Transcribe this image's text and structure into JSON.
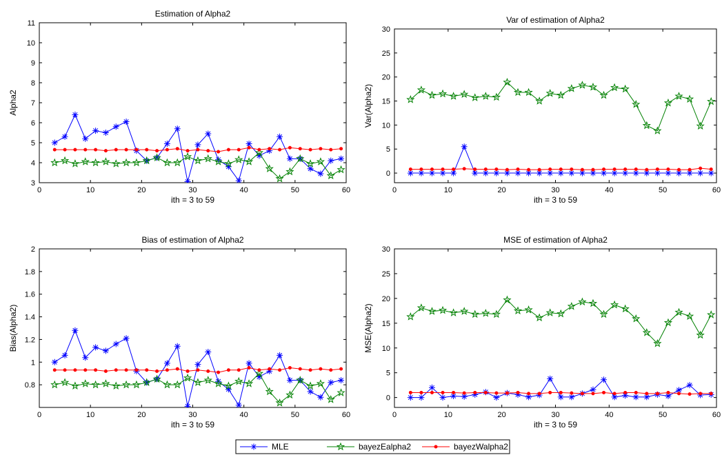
{
  "legend": {
    "entries": [
      {
        "label": "MLE",
        "color": "#0000ff",
        "marker": "asterisk"
      },
      {
        "label": "bayezEalpha2",
        "color": "#008000",
        "marker": "pentagram"
      },
      {
        "label": "bayezWalpha2",
        "color": "#ff0000",
        "marker": "dot"
      }
    ]
  },
  "chart_data": [
    {
      "type": "line",
      "title": "Estimation of Alpha2",
      "xlabel": "ith = 3 to 59",
      "ylabel": "Alpha2",
      "xlim": [
        0,
        60
      ],
      "ylim": [
        3,
        11
      ],
      "xticks": [
        "0",
        "10",
        "20",
        "30",
        "40",
        "50",
        "60"
      ],
      "yticks": [
        "3",
        "4",
        "5",
        "6",
        "7",
        "8",
        "9",
        "10",
        "11"
      ],
      "x": [
        3,
        5,
        7,
        9,
        11,
        13,
        15,
        17,
        19,
        21,
        23,
        25,
        27,
        29,
        31,
        33,
        35,
        37,
        39,
        41,
        43,
        45,
        47,
        49,
        51,
        53,
        55,
        57,
        59
      ],
      "series": [
        {
          "name": "MLE",
          "values": [
            5.0,
            5.3,
            6.4,
            5.2,
            5.6,
            5.5,
            5.8,
            6.05,
            4.6,
            4.1,
            4.25,
            4.95,
            5.7,
            3.05,
            4.9,
            5.45,
            4.15,
            3.8,
            3.1,
            4.95,
            4.35,
            4.6,
            5.3,
            4.2,
            4.2,
            3.7,
            3.45,
            4.1,
            4.2
          ]
        },
        {
          "name": "bayezEalpha2",
          "values": [
            4.0,
            4.1,
            3.95,
            4.05,
            4.0,
            4.05,
            3.95,
            4.0,
            4.0,
            4.1,
            4.25,
            4.0,
            4.0,
            4.3,
            4.1,
            4.2,
            4.05,
            3.95,
            4.15,
            4.05,
            4.5,
            3.7,
            3.2,
            3.55,
            4.2,
            3.95,
            4.05,
            3.35,
            3.65
          ]
        },
        {
          "name": "bayezWalpha2",
          "values": [
            4.65,
            4.65,
            4.65,
            4.65,
            4.65,
            4.6,
            4.65,
            4.65,
            4.65,
            4.65,
            4.6,
            4.65,
            4.7,
            4.6,
            4.65,
            4.6,
            4.55,
            4.65,
            4.65,
            4.75,
            4.65,
            4.7,
            4.65,
            4.75,
            4.7,
            4.65,
            4.7,
            4.65,
            4.7
          ]
        }
      ]
    },
    {
      "type": "line",
      "title": "Var of estimation of Alpha2",
      "xlabel": "ith = 3 to 59",
      "ylabel": "Var(Alpha2)",
      "xlim": [
        0,
        60
      ],
      "ylim": [
        -2,
        30
      ],
      "xticks": [
        "0",
        "10",
        "20",
        "30",
        "40",
        "50",
        "60"
      ],
      "yticks": [
        "0",
        "5",
        "10",
        "15",
        "20",
        "25",
        "30"
      ],
      "x": [
        3,
        5,
        7,
        9,
        11,
        13,
        15,
        17,
        19,
        21,
        23,
        25,
        27,
        29,
        31,
        33,
        35,
        37,
        39,
        41,
        43,
        45,
        47,
        49,
        51,
        53,
        55,
        57,
        59
      ],
      "series": [
        {
          "name": "MLE",
          "values": [
            0,
            0,
            0,
            0,
            0,
            5.5,
            0,
            0,
            0,
            0,
            0,
            0,
            0,
            0,
            0,
            0,
            0,
            0,
            0,
            0,
            0,
            0,
            0,
            0,
            0,
            0,
            0,
            0,
            0
          ]
        },
        {
          "name": "bayezEalpha2",
          "values": [
            15.3,
            17.3,
            16.2,
            16.5,
            16.0,
            16.4,
            15.7,
            16.0,
            15.8,
            18.9,
            16.8,
            16.8,
            15.0,
            16.6,
            16.2,
            17.6,
            18.3,
            17.9,
            16.2,
            17.8,
            17.5,
            14.3,
            9.9,
            8.8,
            14.6,
            16.0,
            15.4,
            9.8,
            14.9
          ]
        },
        {
          "name": "bayezWalpha2",
          "values": [
            0.8,
            0.8,
            0.8,
            0.8,
            0.8,
            0.9,
            0.8,
            0.8,
            0.8,
            0.7,
            0.8,
            0.7,
            0.7,
            0.8,
            0.8,
            0.8,
            0.7,
            0.7,
            0.8,
            0.8,
            0.8,
            0.8,
            0.7,
            0.8,
            0.8,
            0.7,
            0.7,
            1.0,
            0.8
          ]
        }
      ]
    },
    {
      "type": "line",
      "title": "Bias of estimation of Alpha2",
      "xlabel": "ith = 3 to 59",
      "ylabel": "Bias(Alpha2)",
      "xlim": [
        0,
        60
      ],
      "ylim": [
        0.6,
        2
      ],
      "xticks": [
        "0",
        "10",
        "20",
        "30",
        "40",
        "50",
        "60"
      ],
      "yticks": [
        "0.8",
        "1",
        "1.2",
        "1.4",
        "1.6",
        "1.8",
        "2"
      ],
      "x": [
        3,
        5,
        7,
        9,
        11,
        13,
        15,
        17,
        19,
        21,
        23,
        25,
        27,
        29,
        31,
        33,
        35,
        37,
        39,
        41,
        43,
        45,
        47,
        49,
        51,
        53,
        55,
        57,
        59
      ],
      "series": [
        {
          "name": "MLE",
          "values": [
            1.0,
            1.06,
            1.28,
            1.04,
            1.13,
            1.1,
            1.16,
            1.21,
            0.92,
            0.82,
            0.85,
            0.99,
            1.14,
            0.61,
            0.98,
            1.09,
            0.83,
            0.76,
            0.62,
            0.99,
            0.87,
            0.92,
            1.06,
            0.84,
            0.84,
            0.74,
            0.69,
            0.82,
            0.84
          ]
        },
        {
          "name": "bayezEalpha2",
          "values": [
            0.8,
            0.82,
            0.79,
            0.81,
            0.8,
            0.81,
            0.79,
            0.8,
            0.8,
            0.82,
            0.85,
            0.8,
            0.8,
            0.86,
            0.82,
            0.84,
            0.81,
            0.79,
            0.83,
            0.81,
            0.9,
            0.74,
            0.64,
            0.71,
            0.84,
            0.79,
            0.81,
            0.67,
            0.73
          ]
        },
        {
          "name": "bayezWalpha2",
          "values": [
            0.93,
            0.93,
            0.93,
            0.93,
            0.93,
            0.92,
            0.93,
            0.93,
            0.93,
            0.93,
            0.92,
            0.93,
            0.94,
            0.92,
            0.93,
            0.92,
            0.91,
            0.93,
            0.93,
            0.95,
            0.93,
            0.94,
            0.93,
            0.95,
            0.94,
            0.93,
            0.94,
            0.93,
            0.94
          ]
        }
      ]
    },
    {
      "type": "line",
      "title": "MSE of estimation of Alpha2",
      "xlabel": "ith = 3 to 59",
      "ylabel": "MSE(Alpha2)",
      "xlim": [
        0,
        60
      ],
      "ylim": [
        -2,
        30
      ],
      "xticks": [
        "0",
        "10",
        "20",
        "30",
        "40",
        "50",
        "60"
      ],
      "yticks": [
        "0",
        "5",
        "10",
        "15",
        "20",
        "25",
        "30"
      ],
      "x": [
        3,
        5,
        7,
        9,
        11,
        13,
        15,
        17,
        19,
        21,
        23,
        25,
        27,
        29,
        31,
        33,
        35,
        37,
        39,
        41,
        43,
        45,
        47,
        49,
        51,
        53,
        55,
        57,
        59
      ],
      "series": [
        {
          "name": "MLE",
          "values": [
            0,
            0,
            2.0,
            0,
            0.3,
            0.2,
            0.6,
            1.1,
            0,
            0.9,
            0.6,
            0.1,
            0.5,
            3.8,
            0.1,
            0.1,
            0.8,
            1.6,
            3.6,
            0.1,
            0.4,
            0.1,
            0.1,
            0.6,
            0.3,
            1.5,
            2.5,
            0.5,
            0.6
          ]
        },
        {
          "name": "bayezEalpha2",
          "values": [
            16.3,
            18.1,
            17.4,
            17.6,
            17.1,
            17.4,
            16.8,
            17.0,
            16.8,
            19.7,
            17.5,
            17.7,
            16.1,
            17.1,
            16.9,
            18.4,
            19.3,
            19.0,
            16.8,
            18.7,
            17.9,
            15.9,
            13.1,
            10.9,
            15.1,
            17.2,
            16.4,
            12.6,
            16.7
          ]
        },
        {
          "name": "bayezWalpha2",
          "values": [
            1.0,
            1.0,
            1.0,
            1.0,
            1.0,
            0.9,
            1.0,
            1.0,
            0.9,
            0.9,
            1.0,
            0.8,
            0.8,
            1.0,
            1.0,
            0.9,
            0.8,
            0.8,
            1.0,
            0.8,
            1.0,
            1.0,
            0.8,
            0.8,
            1.0,
            0.8,
            0.7,
            0.8,
            0.8
          ]
        }
      ]
    }
  ]
}
